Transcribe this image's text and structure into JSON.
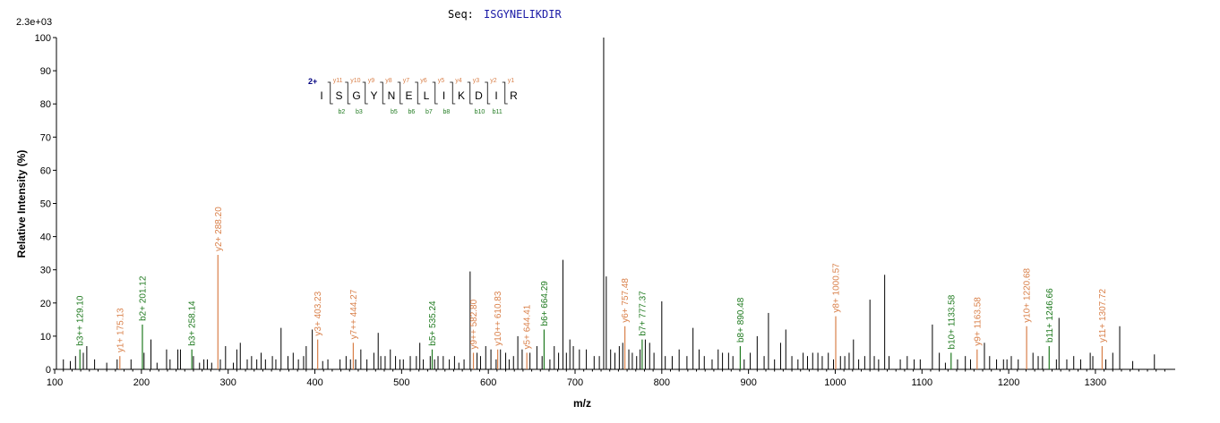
{
  "header": {
    "max_intensity_label": "2.3e+03",
    "seq_prefix": "Seq:",
    "sequence": "ISGYNELIKDIR"
  },
  "colors": {
    "b_ion": "#1f7a1f",
    "y_ion": "#d9804a",
    "unassigned": "#000000",
    "charge": "#000080"
  },
  "legend": {
    "charge": "2+",
    "residues": [
      "I",
      "S",
      "G",
      "Y",
      "N",
      "E",
      "L",
      "I",
      "K",
      "D",
      "I",
      "R"
    ],
    "y_labels": [
      "y11",
      "y10",
      "y9",
      "y8",
      "y7",
      "y6",
      "y5",
      "y4",
      "y3",
      "y2",
      "y1"
    ],
    "b_labels": [
      "b2",
      "b3",
      "b5",
      "b6",
      "b7",
      "b8",
      "b10",
      "b11"
    ]
  },
  "chart_data": {
    "type": "bar",
    "title": "Seq: ISGYNELIKDIR",
    "xlabel": "m/z",
    "ylabel": "Relative   Intensity (%)",
    "xlim": [
      102,
      1392
    ],
    "ylim": [
      0,
      100
    ],
    "xticks": [
      100,
      200,
      300,
      400,
      500,
      600,
      700,
      800,
      900,
      1000,
      1100,
      1200,
      1300
    ],
    "yticks": [
      0,
      10,
      20,
      30,
      40,
      50,
      60,
      70,
      80,
      90,
      100
    ],
    "annotated_peaks": [
      {
        "mz": 129.1,
        "intensity": 6,
        "label": "b3++ 129.10",
        "ion": "b"
      },
      {
        "mz": 175.13,
        "intensity": 4,
        "label": "y1+ 175.13",
        "ion": "y"
      },
      {
        "mz": 201.12,
        "intensity": 13.5,
        "label": "b2+ 201.12",
        "ion": "b"
      },
      {
        "mz": 258.14,
        "intensity": 6,
        "label": "b3+ 258.14",
        "ion": "b"
      },
      {
        "mz": 288.2,
        "intensity": 34.5,
        "label": "y2+ 288.20",
        "ion": "y"
      },
      {
        "mz": 403.23,
        "intensity": 9,
        "label": "y3+ 403.23",
        "ion": "y"
      },
      {
        "mz": 444.27,
        "intensity": 8,
        "label": "y7++ 444.27",
        "ion": "y"
      },
      {
        "mz": 535.24,
        "intensity": 6,
        "label": "b5+ 535.24",
        "ion": "b"
      },
      {
        "mz": 582.8,
        "intensity": 5,
        "label": "y9++ 582.80",
        "ion": "y"
      },
      {
        "mz": 610.83,
        "intensity": 6,
        "label": "y10++ 610.83",
        "ion": "y"
      },
      {
        "mz": 644.41,
        "intensity": 5,
        "label": "y5+ 644.41",
        "ion": "y"
      },
      {
        "mz": 664.29,
        "intensity": 12,
        "label": "b6+ 664.29",
        "ion": "b"
      },
      {
        "mz": 757.48,
        "intensity": 13,
        "label": "y6+ 757.48",
        "ion": "y"
      },
      {
        "mz": 777.37,
        "intensity": 9,
        "label": "b7+ 777.37",
        "ion": "b"
      },
      {
        "mz": 890.48,
        "intensity": 7,
        "label": "b8+ 890.48",
        "ion": "b"
      },
      {
        "mz": 1000.57,
        "intensity": 16,
        "label": "y8+ 1000.57",
        "ion": "y"
      },
      {
        "mz": 1133.58,
        "intensity": 5,
        "label": "b10+ 1133.58",
        "ion": "b"
      },
      {
        "mz": 1163.58,
        "intensity": 6,
        "label": "y9+ 1163.58",
        "ion": "y"
      },
      {
        "mz": 1220.68,
        "intensity": 13,
        "label": "y10+ 1220.68",
        "ion": "y"
      },
      {
        "mz": 1246.66,
        "intensity": 7,
        "label": "b11+ 1246.66",
        "ion": "b"
      },
      {
        "mz": 1307.72,
        "intensity": 7,
        "label": "y11+ 1307.72",
        "ion": "y"
      }
    ],
    "unlabeled_peaks": [
      [
        110,
        3
      ],
      [
        118,
        2.5
      ],
      [
        124,
        4
      ],
      [
        133,
        5
      ],
      [
        137,
        7
      ],
      [
        146,
        3
      ],
      [
        160,
        2
      ],
      [
        172,
        3
      ],
      [
        188,
        3
      ],
      [
        203,
        5
      ],
      [
        211,
        9
      ],
      [
        218,
        2
      ],
      [
        229,
        6
      ],
      [
        233,
        3
      ],
      [
        242,
        6
      ],
      [
        245,
        6
      ],
      [
        260,
        4
      ],
      [
        267,
        2
      ],
      [
        272,
        3
      ],
      [
        276,
        3
      ],
      [
        281,
        2
      ],
      [
        291,
        3
      ],
      [
        297,
        7
      ],
      [
        306,
        2
      ],
      [
        310,
        6
      ],
      [
        314,
        8
      ],
      [
        322,
        3
      ],
      [
        327,
        4
      ],
      [
        333,
        3
      ],
      [
        338,
        5
      ],
      [
        343,
        3
      ],
      [
        351,
        4
      ],
      [
        355,
        3
      ],
      [
        361,
        12.5
      ],
      [
        369,
        4
      ],
      [
        375,
        5
      ],
      [
        381,
        3
      ],
      [
        387,
        4
      ],
      [
        390,
        7
      ],
      [
        397,
        12
      ],
      [
        409,
        2.5
      ],
      [
        415,
        3
      ],
      [
        429,
        3
      ],
      [
        436,
        4
      ],
      [
        441,
        3
      ],
      [
        447,
        3
      ],
      [
        453,
        6
      ],
      [
        460,
        3
      ],
      [
        468,
        5
      ],
      [
        473,
        11
      ],
      [
        476,
        4
      ],
      [
        481,
        4
      ],
      [
        487,
        6
      ],
      [
        493,
        4
      ],
      [
        498,
        3
      ],
      [
        502,
        3
      ],
      [
        510,
        4
      ],
      [
        517,
        4
      ],
      [
        521,
        8
      ],
      [
        525,
        3
      ],
      [
        533,
        4
      ],
      [
        538,
        3
      ],
      [
        542,
        4
      ],
      [
        548,
        4
      ],
      [
        555,
        3
      ],
      [
        561,
        4
      ],
      [
        566,
        2
      ],
      [
        572,
        3
      ],
      [
        579,
        29.5
      ],
      [
        587,
        5
      ],
      [
        591,
        4
      ],
      [
        597,
        7
      ],
      [
        603,
        6
      ],
      [
        609,
        3
      ],
      [
        614,
        6
      ],
      [
        620,
        5
      ],
      [
        624,
        3
      ],
      [
        629,
        4
      ],
      [
        634,
        10
      ],
      [
        639,
        6
      ],
      [
        648,
        5
      ],
      [
        656,
        7
      ],
      [
        662,
        4
      ],
      [
        671,
        3
      ],
      [
        676,
        7
      ],
      [
        681,
        5
      ],
      [
        686,
        33
      ],
      [
        690,
        5
      ],
      [
        694,
        9
      ],
      [
        698,
        7
      ],
      [
        705,
        6
      ],
      [
        713,
        6
      ],
      [
        722,
        4
      ],
      [
        728,
        4
      ],
      [
        733,
        100
      ],
      [
        736,
        28
      ],
      [
        741,
        6
      ],
      [
        746,
        5
      ],
      [
        751,
        7
      ],
      [
        755,
        8
      ],
      [
        762,
        6
      ],
      [
        766,
        5
      ],
      [
        771,
        4
      ],
      [
        775,
        6
      ],
      [
        781,
        9
      ],
      [
        786,
        8
      ],
      [
        791,
        5
      ],
      [
        800,
        20.5
      ],
      [
        804,
        4
      ],
      [
        812,
        4
      ],
      [
        820,
        6
      ],
      [
        829,
        4
      ],
      [
        836,
        12.5
      ],
      [
        843,
        6
      ],
      [
        849,
        4
      ],
      [
        858,
        3
      ],
      [
        865,
        6
      ],
      [
        870,
        5
      ],
      [
        877,
        5
      ],
      [
        882,
        4
      ],
      [
        895,
        3
      ],
      [
        902,
        5
      ],
      [
        910,
        10
      ],
      [
        918,
        4
      ],
      [
        923,
        17
      ],
      [
        930,
        3
      ],
      [
        937,
        8
      ],
      [
        943,
        12
      ],
      [
        950,
        4
      ],
      [
        957,
        3
      ],
      [
        963,
        5
      ],
      [
        968,
        4
      ],
      [
        974,
        5
      ],
      [
        980,
        5
      ],
      [
        985,
        4
      ],
      [
        992,
        5
      ],
      [
        998,
        3
      ],
      [
        1006,
        4
      ],
      [
        1011,
        4
      ],
      [
        1016,
        5
      ],
      [
        1021,
        9
      ],
      [
        1027,
        3
      ],
      [
        1034,
        4
      ],
      [
        1040,
        21
      ],
      [
        1045,
        4
      ],
      [
        1050,
        3
      ],
      [
        1057,
        28.5
      ],
      [
        1062,
        4
      ],
      [
        1075,
        3
      ],
      [
        1083,
        4
      ],
      [
        1091,
        3
      ],
      [
        1098,
        3
      ],
      [
        1112,
        13.5
      ],
      [
        1120,
        5
      ],
      [
        1127,
        2
      ],
      [
        1141,
        3
      ],
      [
        1150,
        4
      ],
      [
        1156,
        3
      ],
      [
        1172,
        8
      ],
      [
        1178,
        4
      ],
      [
        1186,
        3
      ],
      [
        1194,
        3
      ],
      [
        1198,
        3
      ],
      [
        1203,
        4
      ],
      [
        1211,
        3
      ],
      [
        1228,
        5
      ],
      [
        1234,
        4
      ],
      [
        1239,
        4
      ],
      [
        1255,
        3
      ],
      [
        1258,
        15.5
      ],
      [
        1267,
        3
      ],
      [
        1275,
        4
      ],
      [
        1283,
        3
      ],
      [
        1294,
        5
      ],
      [
        1297,
        4
      ],
      [
        1312,
        3
      ],
      [
        1320,
        5
      ],
      [
        1328,
        13
      ],
      [
        1343,
        2.5
      ],
      [
        1368,
        4.5
      ]
    ]
  }
}
